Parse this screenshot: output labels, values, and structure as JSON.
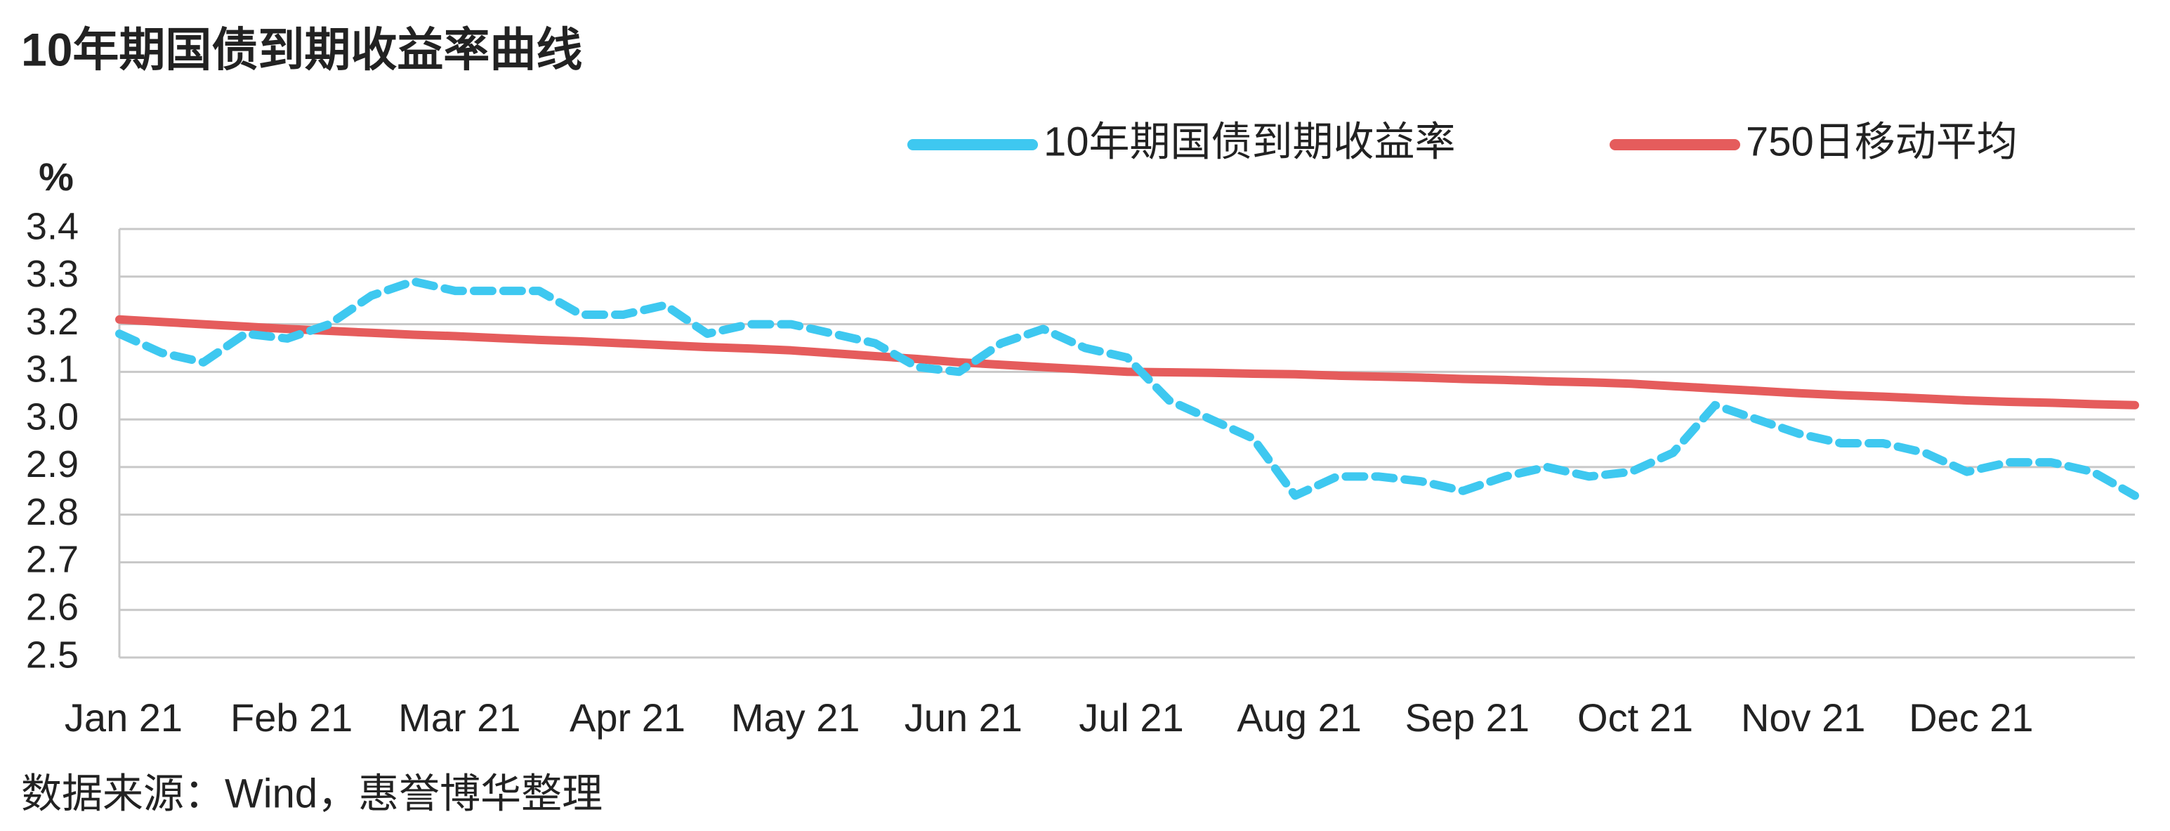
{
  "chart_data": {
    "type": "line",
    "title": "10年期国债到期收益率曲线",
    "y_axis_label": "%",
    "source": "数据来源：Wind，惠誉博华整理",
    "categories": [
      "Jan 21",
      null,
      null,
      null,
      "Feb 21",
      null,
      null,
      null,
      "Mar 21",
      null,
      null,
      null,
      "Apr 21",
      null,
      null,
      null,
      "May 21",
      null,
      null,
      null,
      "Jun 21",
      null,
      null,
      null,
      "Jul 21",
      null,
      null,
      null,
      "Aug 21",
      null,
      null,
      null,
      "Sep 21",
      null,
      null,
      null,
      "Oct 21",
      null,
      null,
      null,
      "Nov 21",
      null,
      null,
      null,
      "Dec 21",
      null,
      null,
      null,
      null
    ],
    "series": [
      {
        "name": "10年期国债到期收益率",
        "color": "#3ec8f0",
        "dashed": true,
        "values": [
          3.18,
          3.14,
          3.12,
          3.18,
          3.17,
          3.2,
          3.26,
          3.29,
          3.27,
          3.27,
          3.27,
          3.22,
          3.22,
          3.24,
          3.18,
          3.2,
          3.2,
          3.18,
          3.16,
          3.11,
          3.1,
          3.16,
          3.19,
          3.15,
          3.13,
          3.04,
          3.0,
          2.96,
          2.84,
          2.88,
          2.88,
          2.87,
          2.85,
          2.88,
          2.9,
          2.88,
          2.89,
          2.93,
          3.03,
          3.0,
          2.97,
          2.95,
          2.95,
          2.93,
          2.89,
          2.91,
          2.91,
          2.89,
          2.84
        ]
      },
      {
        "name": "750日移动平均",
        "color": "#e55c5c",
        "dashed": false,
        "values": [
          3.21,
          3.205,
          3.2,
          3.195,
          3.19,
          3.186,
          3.182,
          3.178,
          3.175,
          3.171,
          3.167,
          3.164,
          3.16,
          3.156,
          3.152,
          3.149,
          3.145,
          3.139,
          3.133,
          3.127,
          3.12,
          3.115,
          3.11,
          3.105,
          3.1,
          3.099,
          3.098,
          3.096,
          3.095,
          3.092,
          3.09,
          3.088,
          3.085,
          3.083,
          3.08,
          3.078,
          3.075,
          3.07,
          3.065,
          3.06,
          3.055,
          3.051,
          3.048,
          3.044,
          3.04,
          3.037,
          3.035,
          3.032,
          3.03
        ]
      }
    ],
    "ylim": [
      2.5,
      3.4
    ],
    "yticks": [
      2.5,
      2.6,
      2.7,
      2.8,
      2.9,
      {
        "value": 3.0,
        "label": "3.0"
      },
      3.1,
      3.2,
      3.3,
      3.4
    ],
    "grid": true,
    "legend": "top-right"
  }
}
